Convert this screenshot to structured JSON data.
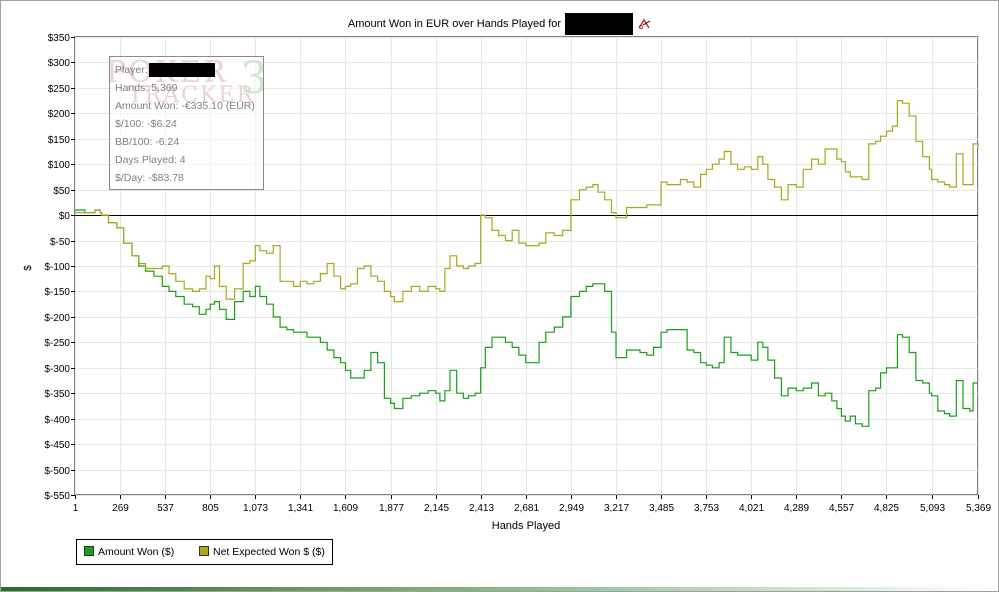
{
  "window": {
    "accent_color": "#2b6b2b"
  },
  "chart_data": {
    "type": "line",
    "title_prefix": "Amount Won in EUR over Hands Played for",
    "title_name_redacted": true,
    "title_icon": "poker-tracker-logo-icon",
    "xlabel": "Hands Played",
    "ylabel": "$",
    "xlim": [
      1,
      5369
    ],
    "ylim": [
      -550,
      350
    ],
    "x_ticks": [
      1,
      269,
      537,
      805,
      1073,
      1341,
      1609,
      1877,
      2145,
      2413,
      2681,
      2949,
      3217,
      3485,
      3753,
      4021,
      4289,
      4557,
      4825,
      5093,
      5369
    ],
    "x_tick_labels": [
      "1",
      "269",
      "537",
      "805",
      "1,073",
      "1,341",
      "1,609",
      "1,877",
      "2,145",
      "2,413",
      "2,681",
      "2,949",
      "3,217",
      "3,485",
      "3,753",
      "4,021",
      "4,289",
      "4,557",
      "4,825",
      "5,093",
      "5,369"
    ],
    "y_ticks": [
      350,
      300,
      250,
      200,
      150,
      100,
      50,
      0,
      -50,
      -100,
      -150,
      -200,
      -250,
      -300,
      -350,
      -400,
      -450,
      -500,
      -550
    ],
    "y_tick_labels": [
      "$350",
      "$300",
      "$250",
      "$200",
      "$150",
      "$100",
      "$50",
      "$0",
      "$-50",
      "$-100",
      "$-150",
      "$-200",
      "$-250",
      "$-300",
      "$-350",
      "$-400",
      "$-450",
      "$-500",
      "$-550"
    ],
    "grid": true,
    "legend_position": "bottom-left",
    "series": [
      {
        "name": "Amount Won ($)",
        "color": "#18a018",
        "points": [
          [
            1,
            10
          ],
          [
            60,
            5
          ],
          [
            120,
            10
          ],
          [
            150,
            5
          ],
          [
            160,
            0
          ],
          [
            200,
            -15
          ],
          [
            250,
            -25
          ],
          [
            290,
            -55
          ],
          [
            340,
            -80
          ],
          [
            380,
            -100
          ],
          [
            420,
            -110
          ],
          [
            470,
            -120
          ],
          [
            520,
            -140
          ],
          [
            560,
            -150
          ],
          [
            600,
            -160
          ],
          [
            650,
            -175
          ],
          [
            700,
            -180
          ],
          [
            740,
            -195
          ],
          [
            780,
            -185
          ],
          [
            805,
            -175
          ],
          [
            830,
            -170
          ],
          [
            860,
            -185
          ],
          [
            900,
            -205
          ],
          [
            950,
            -170
          ],
          [
            1000,
            -150
          ],
          [
            1040,
            -160
          ],
          [
            1073,
            -140
          ],
          [
            1100,
            -160
          ],
          [
            1140,
            -175
          ],
          [
            1180,
            -200
          ],
          [
            1220,
            -220
          ],
          [
            1260,
            -225
          ],
          [
            1300,
            -230
          ],
          [
            1341,
            -230
          ],
          [
            1380,
            -240
          ],
          [
            1420,
            -240
          ],
          [
            1460,
            -250
          ],
          [
            1500,
            -265
          ],
          [
            1540,
            -280
          ],
          [
            1580,
            -290
          ],
          [
            1609,
            -305
          ],
          [
            1640,
            -320
          ],
          [
            1680,
            -320
          ],
          [
            1720,
            -305
          ],
          [
            1760,
            -270
          ],
          [
            1800,
            -290
          ],
          [
            1840,
            -360
          ],
          [
            1877,
            -370
          ],
          [
            1900,
            -380
          ],
          [
            1950,
            -360
          ],
          [
            2000,
            -355
          ],
          [
            2050,
            -350
          ],
          [
            2100,
            -345
          ],
          [
            2145,
            -350
          ],
          [
            2170,
            -365
          ],
          [
            2200,
            -345
          ],
          [
            2230,
            -305
          ],
          [
            2270,
            -350
          ],
          [
            2310,
            -360
          ],
          [
            2340,
            -355
          ],
          [
            2380,
            -350
          ],
          [
            2413,
            -300
          ],
          [
            2440,
            -260
          ],
          [
            2480,
            -240
          ],
          [
            2520,
            -240
          ],
          [
            2560,
            -250
          ],
          [
            2600,
            -260
          ],
          [
            2640,
            -275
          ],
          [
            2681,
            -290
          ],
          [
            2720,
            -290
          ],
          [
            2760,
            -250
          ],
          [
            2800,
            -230
          ],
          [
            2850,
            -220
          ],
          [
            2900,
            -200
          ],
          [
            2949,
            -160
          ],
          [
            3000,
            -150
          ],
          [
            3040,
            -140
          ],
          [
            3080,
            -135
          ],
          [
            3110,
            -135
          ],
          [
            3150,
            -150
          ],
          [
            3190,
            -230
          ],
          [
            3217,
            -280
          ],
          [
            3250,
            -280
          ],
          [
            3280,
            -265
          ],
          [
            3320,
            -265
          ],
          [
            3360,
            -270
          ],
          [
            3400,
            -275
          ],
          [
            3440,
            -260
          ],
          [
            3485,
            -230
          ],
          [
            3520,
            -225
          ],
          [
            3560,
            -225
          ],
          [
            3600,
            -225
          ],
          [
            3640,
            -265
          ],
          [
            3680,
            -270
          ],
          [
            3720,
            -290
          ],
          [
            3753,
            -295
          ],
          [
            3790,
            -300
          ],
          [
            3830,
            -290
          ],
          [
            3860,
            -240
          ],
          [
            3900,
            -270
          ],
          [
            3940,
            -275
          ],
          [
            3980,
            -275
          ],
          [
            4021,
            -285
          ],
          [
            4060,
            -250
          ],
          [
            4090,
            -260
          ],
          [
            4120,
            -285
          ],
          [
            4160,
            -320
          ],
          [
            4200,
            -355
          ],
          [
            4240,
            -340
          ],
          [
            4289,
            -345
          ],
          [
            4330,
            -340
          ],
          [
            4380,
            -330
          ],
          [
            4420,
            -355
          ],
          [
            4460,
            -350
          ],
          [
            4500,
            -365
          ],
          [
            4530,
            -380
          ],
          [
            4557,
            -395
          ],
          [
            4580,
            -405
          ],
          [
            4610,
            -395
          ],
          [
            4640,
            -410
          ],
          [
            4680,
            -415
          ],
          [
            4720,
            -345
          ],
          [
            4760,
            -340
          ],
          [
            4790,
            -310
          ],
          [
            4825,
            -300
          ],
          [
            4860,
            -300
          ],
          [
            4890,
            -235
          ],
          [
            4920,
            -240
          ],
          [
            4960,
            -270
          ],
          [
            5000,
            -325
          ],
          [
            5040,
            -330
          ],
          [
            5080,
            -350
          ],
          [
            5093,
            -355
          ],
          [
            5130,
            -385
          ],
          [
            5170,
            -390
          ],
          [
            5200,
            -395
          ],
          [
            5240,
            -325
          ],
          [
            5280,
            -380
          ],
          [
            5320,
            -385
          ],
          [
            5340,
            -330
          ],
          [
            5369,
            -330
          ]
        ]
      },
      {
        "name": "Net Expected Won $ ($)",
        "color": "#a8a81c",
        "points": [
          [
            1,
            5
          ],
          [
            60,
            5
          ],
          [
            120,
            10
          ],
          [
            150,
            5
          ],
          [
            160,
            0
          ],
          [
            200,
            -15
          ],
          [
            250,
            -25
          ],
          [
            290,
            -55
          ],
          [
            340,
            -80
          ],
          [
            380,
            -95
          ],
          [
            420,
            -105
          ],
          [
            470,
            -105
          ],
          [
            520,
            -100
          ],
          [
            560,
            -115
          ],
          [
            600,
            -130
          ],
          [
            650,
            -145
          ],
          [
            700,
            -150
          ],
          [
            740,
            -145
          ],
          [
            780,
            -120
          ],
          [
            805,
            -125
          ],
          [
            830,
            -100
          ],
          [
            860,
            -140
          ],
          [
            900,
            -165
          ],
          [
            950,
            -145
          ],
          [
            1000,
            -95
          ],
          [
            1040,
            -90
          ],
          [
            1073,
            -60
          ],
          [
            1100,
            -70
          ],
          [
            1140,
            -75
          ],
          [
            1180,
            -60
          ],
          [
            1220,
            -130
          ],
          [
            1260,
            -130
          ],
          [
            1300,
            -140
          ],
          [
            1341,
            -130
          ],
          [
            1380,
            -135
          ],
          [
            1420,
            -130
          ],
          [
            1460,
            -115
          ],
          [
            1500,
            -95
          ],
          [
            1540,
            -120
          ],
          [
            1580,
            -145
          ],
          [
            1609,
            -140
          ],
          [
            1640,
            -135
          ],
          [
            1680,
            -105
          ],
          [
            1720,
            -100
          ],
          [
            1760,
            -120
          ],
          [
            1800,
            -130
          ],
          [
            1840,
            -150
          ],
          [
            1877,
            -160
          ],
          [
            1900,
            -170
          ],
          [
            1950,
            -150
          ],
          [
            2000,
            -140
          ],
          [
            2050,
            -150
          ],
          [
            2100,
            -140
          ],
          [
            2145,
            -145
          ],
          [
            2170,
            -150
          ],
          [
            2200,
            -105
          ],
          [
            2230,
            -80
          ],
          [
            2270,
            -100
          ],
          [
            2310,
            -105
          ],
          [
            2340,
            -100
          ],
          [
            2380,
            -95
          ],
          [
            2413,
            0
          ],
          [
            2440,
            -5
          ],
          [
            2480,
            -30
          ],
          [
            2520,
            -40
          ],
          [
            2560,
            -50
          ],
          [
            2600,
            -30
          ],
          [
            2640,
            -55
          ],
          [
            2681,
            -60
          ],
          [
            2720,
            -60
          ],
          [
            2760,
            -55
          ],
          [
            2800,
            -35
          ],
          [
            2850,
            -40
          ],
          [
            2900,
            -30
          ],
          [
            2949,
            30
          ],
          [
            3000,
            50
          ],
          [
            3040,
            55
          ],
          [
            3080,
            60
          ],
          [
            3110,
            45
          ],
          [
            3150,
            30
          ],
          [
            3190,
            5
          ],
          [
            3217,
            -5
          ],
          [
            3250,
            -5
          ],
          [
            3280,
            15
          ],
          [
            3320,
            15
          ],
          [
            3360,
            15
          ],
          [
            3400,
            20
          ],
          [
            3440,
            20
          ],
          [
            3485,
            65
          ],
          [
            3520,
            60
          ],
          [
            3560,
            60
          ],
          [
            3600,
            70
          ],
          [
            3640,
            65
          ],
          [
            3680,
            55
          ],
          [
            3720,
            80
          ],
          [
            3753,
            90
          ],
          [
            3790,
            100
          ],
          [
            3830,
            110
          ],
          [
            3860,
            125
          ],
          [
            3900,
            100
          ],
          [
            3940,
            90
          ],
          [
            3980,
            95
          ],
          [
            4021,
            90
          ],
          [
            4060,
            115
          ],
          [
            4090,
            100
          ],
          [
            4120,
            70
          ],
          [
            4160,
            55
          ],
          [
            4200,
            30
          ],
          [
            4240,
            60
          ],
          [
            4289,
            55
          ],
          [
            4330,
            90
          ],
          [
            4380,
            110
          ],
          [
            4420,
            100
          ],
          [
            4460,
            130
          ],
          [
            4500,
            130
          ],
          [
            4530,
            110
          ],
          [
            4557,
            105
          ],
          [
            4580,
            85
          ],
          [
            4610,
            75
          ],
          [
            4640,
            75
          ],
          [
            4680,
            70
          ],
          [
            4720,
            140
          ],
          [
            4760,
            145
          ],
          [
            4790,
            155
          ],
          [
            4825,
            165
          ],
          [
            4860,
            175
          ],
          [
            4890,
            225
          ],
          [
            4920,
            220
          ],
          [
            4960,
            195
          ],
          [
            5000,
            145
          ],
          [
            5040,
            115
          ],
          [
            5080,
            90
          ],
          [
            5093,
            70
          ],
          [
            5130,
            65
          ],
          [
            5170,
            60
          ],
          [
            5200,
            55
          ],
          [
            5240,
            120
          ],
          [
            5280,
            60
          ],
          [
            5320,
            60
          ],
          [
            5340,
            140
          ],
          [
            5369,
            135
          ]
        ]
      }
    ],
    "stats_box": {
      "player_label": "Player:",
      "player_name_redacted": true,
      "lines": [
        "Hands: 5,369",
        "Amount Won: -€335.10 (EUR)",
        "$/100: -$6.24",
        "BB/100: -6.24",
        "Days Played: 4",
        "$/Day: -$83.78"
      ],
      "watermark": [
        "POKER",
        "TRACKER",
        "3"
      ]
    }
  }
}
